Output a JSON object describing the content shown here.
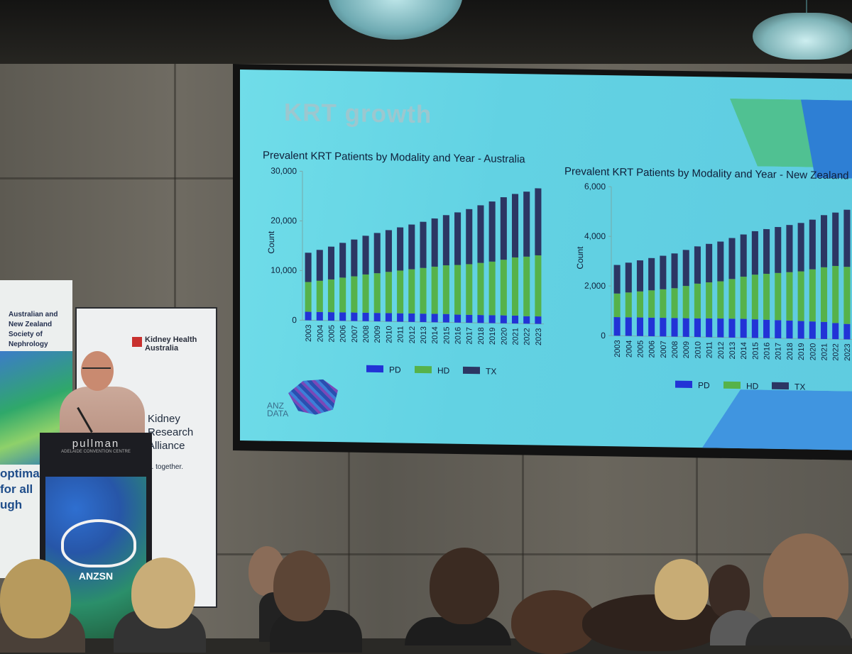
{
  "slide": {
    "title": "KRT growth",
    "logo_text": "ANZ\nDATA"
  },
  "podium": {
    "sign": "pullman",
    "sub": "ADELAIDE CONVENTION CENTRE",
    "logo_text": "ANZSN"
  },
  "banners": {
    "left_text": "Australian and\nNew Zealand\nSociety of\nNephrology",
    "left_tagline": "optimal\nfor all\nugh",
    "mid_brand": "Kidney Health\nAustralia",
    "mid_title": "Kidney\nResearch\nAlliance",
    "mid_tagline": "e. together."
  },
  "colors": {
    "PD": "#2233d6",
    "HD": "#56b24a",
    "TX": "#2c3663",
    "slide_bg": "#62d2e3"
  },
  "chart_data": [
    {
      "type": "bar",
      "stacked": true,
      "title": "Prevalent KRT Patients by Modality and Year - Australia",
      "xlabel": "",
      "ylabel": "Count",
      "ylim": [
        0,
        30000
      ],
      "yticks": [
        "0",
        "10,000",
        "20,000",
        "30,000"
      ],
      "legend": "bottom",
      "categories": [
        "2003",
        "2004",
        "2005",
        "2006",
        "2007",
        "2008",
        "2009",
        "2010",
        "2011",
        "2012",
        "2013",
        "2014",
        "2015",
        "2016",
        "2017",
        "2018",
        "2019",
        "2020",
        "2021",
        "2022",
        "2023"
      ],
      "series": [
        {
          "name": "PD",
          "values": [
            1700,
            1700,
            1700,
            1700,
            1700,
            1700,
            1700,
            1700,
            1700,
            1700,
            1700,
            1700,
            1700,
            1600,
            1600,
            1600,
            1600,
            1600,
            1600,
            1500,
            1500
          ]
        },
        {
          "name": "HD",
          "values": [
            6000,
            6300,
            6600,
            7000,
            7300,
            7700,
            8000,
            8300,
            8600,
            8900,
            9200,
            9500,
            9800,
            10000,
            10200,
            10500,
            10800,
            11200,
            11700,
            12000,
            12300
          ]
        },
        {
          "name": "TX",
          "values": [
            5900,
            6200,
            6600,
            7000,
            7400,
            7800,
            8100,
            8400,
            8700,
            9000,
            9300,
            9700,
            10100,
            10600,
            11100,
            11600,
            12100,
            12600,
            12800,
            13100,
            13500
          ]
        }
      ]
    },
    {
      "type": "bar",
      "stacked": true,
      "title": "Prevalent KRT Patients by Modality and Year - New Zealand",
      "xlabel": "",
      "ylabel": "Count",
      "ylim": [
        0,
        6000
      ],
      "yticks": [
        "0",
        "2,000",
        "4,000",
        "6,000"
      ],
      "legend": "bottom",
      "categories": [
        "2003",
        "2004",
        "2005",
        "2006",
        "2007",
        "2008",
        "2009",
        "2010",
        "2011",
        "2012",
        "2013",
        "2014",
        "2015",
        "2016",
        "2017",
        "2018",
        "2019",
        "2020",
        "2021",
        "2022",
        "2023"
      ],
      "series": [
        {
          "name": "PD",
          "values": [
            750,
            750,
            750,
            750,
            750,
            750,
            750,
            750,
            760,
            760,
            760,
            760,
            750,
            740,
            730,
            720,
            710,
            700,
            690,
            650,
            620
          ]
        },
        {
          "name": "HD",
          "values": [
            950,
            1000,
            1050,
            1100,
            1150,
            1200,
            1300,
            1400,
            1450,
            1500,
            1600,
            1700,
            1800,
            1850,
            1900,
            1950,
            2000,
            2100,
            2200,
            2300,
            2300
          ]
        },
        {
          "name": "TX",
          "values": [
            1150,
            1200,
            1250,
            1300,
            1350,
            1400,
            1450,
            1500,
            1550,
            1600,
            1650,
            1700,
            1750,
            1800,
            1850,
            1900,
            1950,
            2000,
            2100,
            2150,
            2300
          ]
        }
      ]
    }
  ]
}
